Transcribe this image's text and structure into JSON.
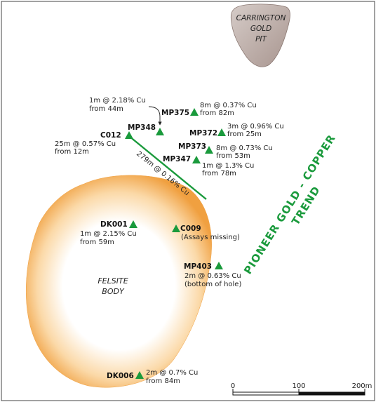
{
  "pit": {
    "line1": "CARRINGTON",
    "line2": "GOLD",
    "line3": "PIT"
  },
  "felsite": {
    "line1": "FELSITE",
    "line2": "BODY"
  },
  "trend": {
    "line1": "PIONEER GOLD - COPPER",
    "line2": "TREND"
  },
  "trace_label": "279m @ 0.16% Cu",
  "colors": {
    "drill_hole": "#1a9a3c",
    "trend": "#1a9a3c",
    "felsite": "#f0a040",
    "pit": "#b8a9a4"
  },
  "holes": {
    "mp375": {
      "name": "MP375",
      "a1": "8m @ 0.37% Cu",
      "a2": "from 82m"
    },
    "mp348": {
      "name": "MP348",
      "a1": "1m @ 2.18% Cu",
      "a2": "from 44m"
    },
    "mp372": {
      "name": "MP372",
      "a1": "3m @ 0.96% Cu",
      "a2": "from 25m"
    },
    "c012": {
      "name": "C012",
      "a1": "25m @ 0.57% Cu",
      "a2": "from 12m"
    },
    "mp373": {
      "name": "MP373",
      "a1": "8m @ 0.73% Cu",
      "a2": "from 53m"
    },
    "mp347": {
      "name": "MP347",
      "a1": "1m @ 1.3% Cu",
      "a2": "from 78m"
    },
    "dk001": {
      "name": "DK001",
      "a1": "1m @ 2.15% Cu",
      "a2": "from 59m"
    },
    "c009": {
      "name": "C009",
      "a1": "(Assays missing)"
    },
    "mp403": {
      "name": "MP403",
      "a1": "2m @ 0.63% Cu",
      "a2": "(bottom of hole)"
    },
    "dk006": {
      "name": "DK006",
      "a1": "2m @ 0.7% Cu",
      "a2": "from 84m"
    }
  },
  "scale": {
    "t0": "0",
    "t1": "100",
    "t2": "200m"
  }
}
